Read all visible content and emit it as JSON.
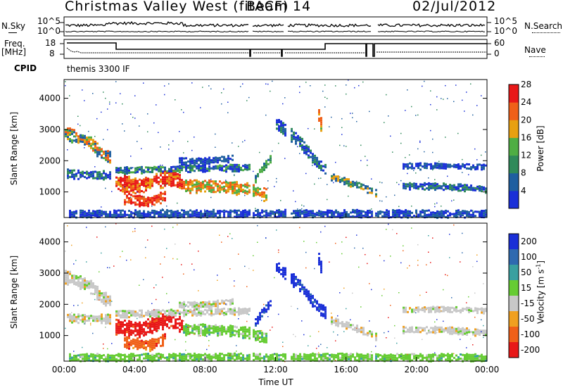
{
  "header": {
    "title_left": "Christmas Valley West (fitACF)",
    "title_mid": "Beam 14",
    "title_right": "02/Jul/2012"
  },
  "nsky_panel": {
    "left_label": "N.Sky",
    "ticks_left": [
      "10^5",
      "10^0"
    ],
    "right_label": "N.Search",
    "ticks_right": [
      "10^5",
      "10^0"
    ]
  },
  "freq_panel": {
    "left_label_1": "Freq.",
    "left_label_2": "[MHz]",
    "ticks_left": [
      "18",
      "8"
    ],
    "right_label": "Nave",
    "ticks_right": [
      "60",
      "0"
    ]
  },
  "cpid": {
    "label": "CPID",
    "value": "themis 3300 IF"
  },
  "chart_data": [
    {
      "type": "heatmap",
      "title": "",
      "xlabel": "",
      "ylabel": "Slant Range [km]",
      "yticks": [
        "1000",
        "2000",
        "3000",
        "4000"
      ],
      "ylim": [
        180,
        4600
      ],
      "colorbar_label": "Power [dB]",
      "colorbar_ticks": [
        "4",
        "8",
        "12",
        "16",
        "20",
        "24",
        "28"
      ],
      "colors": [
        "#1a2fd8",
        "#1f5fa0",
        "#2f8a5a",
        "#4fae44",
        "#e8a010",
        "#f06018",
        "#e81818"
      ]
    },
    {
      "type": "heatmap",
      "title": "",
      "xlabel": "Time UT",
      "ylabel": "Slant Range [km]",
      "yticks": [
        "1000",
        "2000",
        "3000",
        "4000"
      ],
      "ylim": [
        180,
        4600
      ],
      "xticks": [
        "00:00",
        "04:00",
        "08:00",
        "12:00",
        "16:00",
        "20:00",
        "00:00"
      ],
      "colorbar_label": "Velocity [m s",
      "colorbar_label_sup": "-1",
      "colorbar_label_end": "]",
      "colorbar_ticks": [
        "200",
        "100",
        "50",
        "15",
        "-15",
        "-50",
        "-100",
        "-200"
      ],
      "colors": [
        "#1a2fd8",
        "#2f6ab0",
        "#3aa0a0",
        "#66cc33",
        "#c8c8c8",
        "#f0a020",
        "#f06018",
        "#e81818"
      ]
    }
  ]
}
